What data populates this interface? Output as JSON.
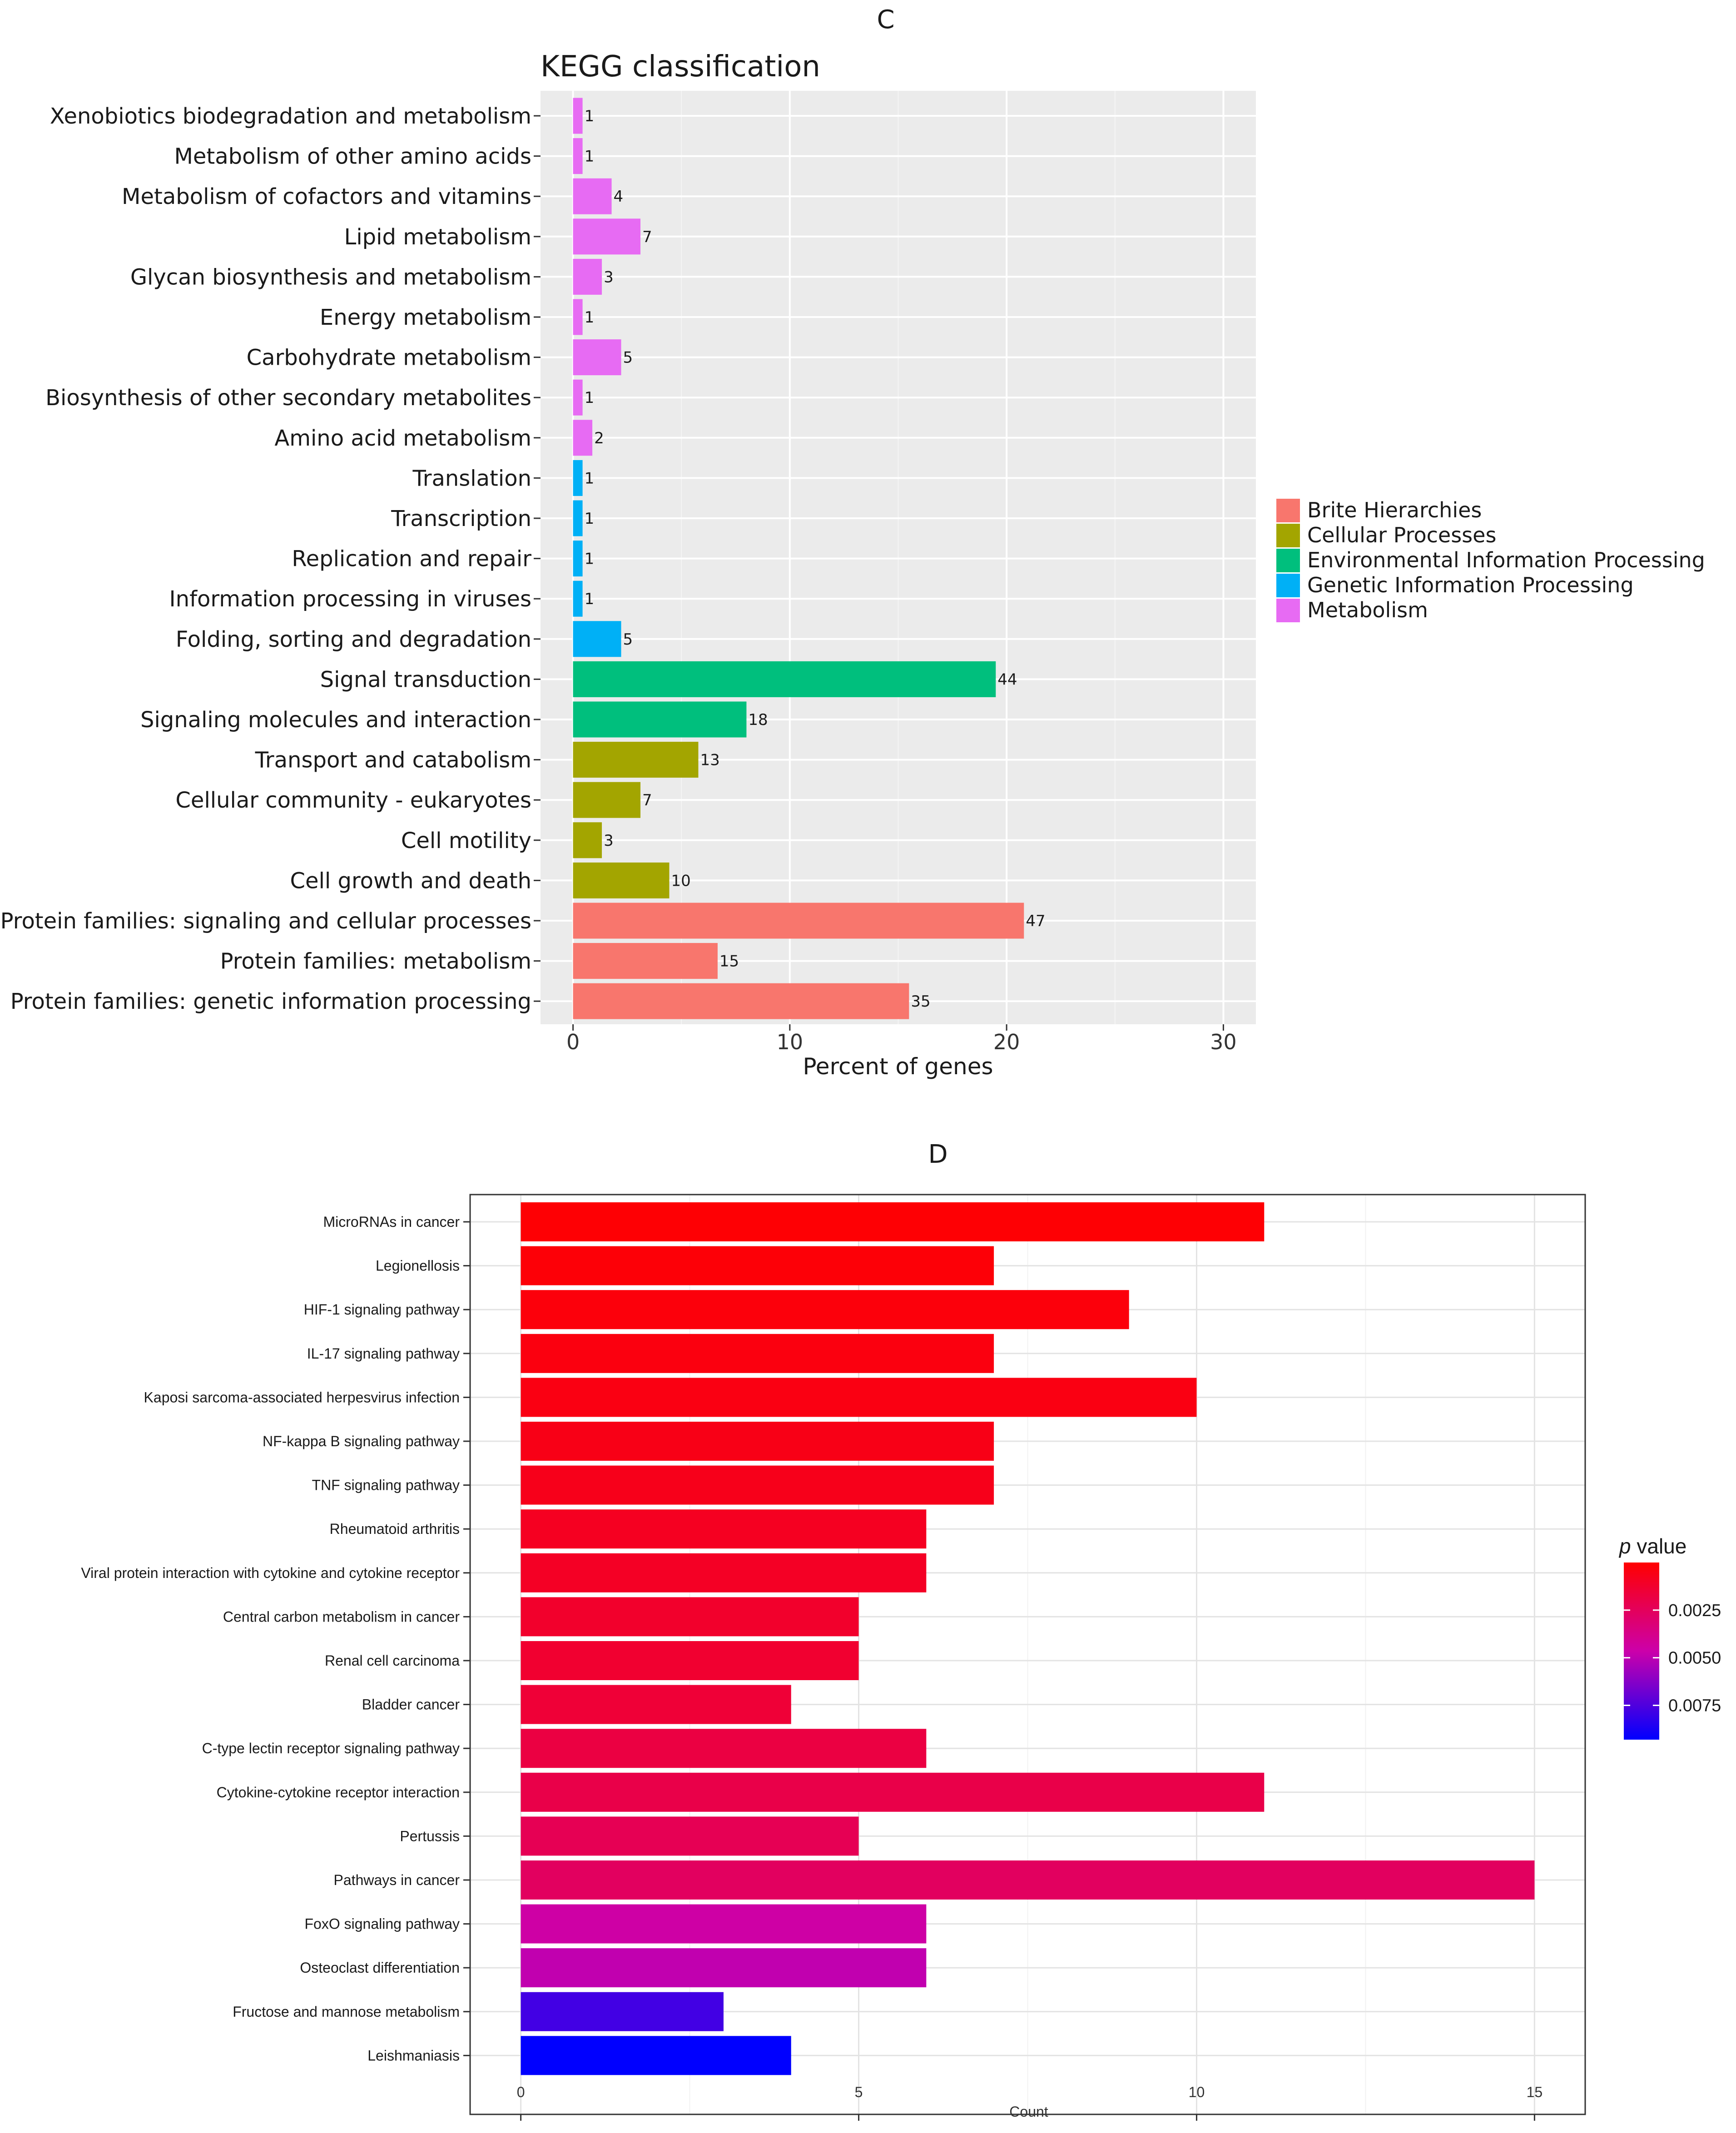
{
  "chart_data": [
    {
      "panel_label": "C",
      "type": "bar",
      "orientation": "horizontal",
      "title": "KEGG classification",
      "xlabel": "Percent of genes",
      "ylabel": "",
      "xlim": [
        -1.5,
        31.5
      ],
      "xticks": [
        0,
        10,
        20,
        30
      ],
      "grid": true,
      "legend_position": "right",
      "colors": {
        "Brite Hierarchies": "#F8766D",
        "Cellular Processes": "#A3A500",
        "Environmental Information Processing": "#00BF7D",
        "Genetic Information Processing": "#00B0F6",
        "Metabolism": "#E76BF3"
      },
      "legend": [
        "Brite Hierarchies",
        "Cellular Processes",
        "Environmental Information Processing",
        "Genetic Information Processing",
        "Metabolism"
      ],
      "bars": [
        {
          "label": "Xenobiotics biodegradation and metabolism",
          "group": "Metabolism",
          "count": "1",
          "percent": 0.44
        },
        {
          "label": "Metabolism of other amino acids",
          "group": "Metabolism",
          "count": "1",
          "percent": 0.44
        },
        {
          "label": "Metabolism of cofactors and vitamins",
          "group": "Metabolism",
          "count": "4",
          "percent": 1.78
        },
        {
          "label": "Lipid metabolism",
          "group": "Metabolism",
          "count": "7",
          "percent": 3.11
        },
        {
          "label": "Glycan biosynthesis and metabolism",
          "group": "Metabolism",
          "count": "3",
          "percent": 1.33
        },
        {
          "label": "Energy metabolism",
          "group": "Metabolism",
          "count": "1",
          "percent": 0.44
        },
        {
          "label": "Carbohydrate metabolism",
          "group": "Metabolism",
          "count": "5",
          "percent": 2.22
        },
        {
          "label": "Biosynthesis of other secondary metabolites",
          "group": "Metabolism",
          "count": "1",
          "percent": 0.44
        },
        {
          "label": "Amino acid metabolism",
          "group": "Metabolism",
          "count": "2",
          "percent": 0.89
        },
        {
          "label": "Translation",
          "group": "Genetic Information Processing",
          "count": "1",
          "percent": 0.44
        },
        {
          "label": "Transcription",
          "group": "Genetic Information Processing",
          "count": "1",
          "percent": 0.44
        },
        {
          "label": "Replication and repair",
          "group": "Genetic Information Processing",
          "count": "1",
          "percent": 0.44
        },
        {
          "label": "Information processing in viruses",
          "group": "Genetic Information Processing",
          "count": "1",
          "percent": 0.44
        },
        {
          "label": "Folding, sorting and degradation",
          "group": "Genetic Information Processing",
          "count": "5",
          "percent": 2.22
        },
        {
          "label": "Signal transduction",
          "group": "Environmental Information Processing",
          "count": "44",
          "percent": 19.5
        },
        {
          "label": "Signaling molecules and interaction",
          "group": "Environmental Information Processing",
          "count": "18",
          "percent": 8.0
        },
        {
          "label": "Transport and catabolism",
          "group": "Cellular Processes",
          "count": "13",
          "percent": 5.78
        },
        {
          "label": "Cellular community - eukaryotes",
          "group": "Cellular Processes",
          "count": "7",
          "percent": 3.11
        },
        {
          "label": "Cell motility",
          "group": "Cellular Processes",
          "count": "3",
          "percent": 1.33
        },
        {
          "label": "Cell growth and death",
          "group": "Cellular Processes",
          "count": "10",
          "percent": 4.44
        },
        {
          "label": "Protein families: signaling and cellular processes",
          "group": "Brite Hierarchies",
          "count": "47",
          "percent": 20.8
        },
        {
          "label": "Protein families: metabolism",
          "group": "Brite Hierarchies",
          "count": "15",
          "percent": 6.67
        },
        {
          "label": "Protein families: genetic information processing",
          "group": "Brite Hierarchies",
          "count": "35",
          "percent": 15.5
        }
      ]
    },
    {
      "panel_label": "D",
      "type": "bar",
      "orientation": "horizontal",
      "title": "",
      "xlabel": "Count",
      "ylabel": "",
      "xlim": [
        -0.75,
        15.75
      ],
      "xticks": [
        0,
        5,
        10,
        15
      ],
      "grid": true,
      "legend_position": "right",
      "legend_title_italic": "p",
      "legend_title_rest": " value",
      "colorbar": {
        "low_color": "#FF0000",
        "mid_color": "#CC00AA",
        "high_color": "#0000FF",
        "min": 0.0,
        "max": 0.0093,
        "ticks": [
          0.0025,
          0.005,
          0.0075
        ],
        "tick_labels": [
          "0.0025",
          "0.0050",
          "0.0075"
        ]
      },
      "bars": [
        {
          "label": "MicroRNAs in cancer",
          "count": 11,
          "p": 0.0001
        },
        {
          "label": "Legionellosis",
          "count": 7,
          "p": 0.0002
        },
        {
          "label": "HIF-1 signaling pathway",
          "count": 9,
          "p": 0.0003
        },
        {
          "label": "IL-17 signaling pathway",
          "count": 7,
          "p": 0.0004
        },
        {
          "label": "Kaposi sarcoma-associated herpesvirus infection",
          "count": 10,
          "p": 0.0005
        },
        {
          "label": "NF-kappa B signaling pathway",
          "count": 7,
          "p": 0.0006
        },
        {
          "label": "TNF signaling pathway",
          "count": 7,
          "p": 0.0007
        },
        {
          "label": "Rheumatoid arthritis",
          "count": 6,
          "p": 0.0009
        },
        {
          "label": "Viral protein interaction with cytokine and cytokine receptor",
          "count": 6,
          "p": 0.001
        },
        {
          "label": "Central carbon metabolism in cancer",
          "count": 5,
          "p": 0.0012
        },
        {
          "label": "Renal cell carcinoma",
          "count": 5,
          "p": 0.0013
        },
        {
          "label": "Bladder cancer",
          "count": 4,
          "p": 0.0015
        },
        {
          "label": "C-type lectin receptor signaling pathway",
          "count": 6,
          "p": 0.0018
        },
        {
          "label": "Cytokine-cytokine receptor interaction",
          "count": 11,
          "p": 0.002
        },
        {
          "label": "Pertussis",
          "count": 5,
          "p": 0.0023
        },
        {
          "label": "Pathways in cancer",
          "count": 15,
          "p": 0.0026
        },
        {
          "label": "FoxO signaling pathway",
          "count": 6,
          "p": 0.0045
        },
        {
          "label": "Osteoclast differentiation",
          "count": 6,
          "p": 0.0049
        },
        {
          "label": "Fructose and mannose metabolism",
          "count": 3,
          "p": 0.0078
        },
        {
          "label": "Leishmaniasis",
          "count": 4,
          "p": 0.0093
        }
      ]
    }
  ]
}
